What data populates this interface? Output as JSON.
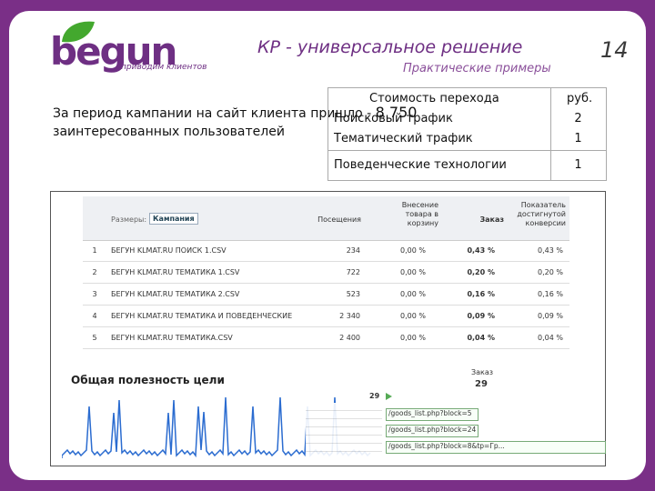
{
  "header": {
    "logo": "begun",
    "tagline": "приводим клиентов",
    "title": "КР - универсальное решение",
    "subtitle": "Практические примеры",
    "page_number": "14"
  },
  "intro": {
    "text": "За период кампании на сайт клиента пришло - ",
    "count": "8 750",
    "text_end": "заинтересованных пользователей"
  },
  "cost_table": {
    "header": [
      "Стоимость перехода",
      "руб."
    ],
    "rows": [
      [
        "Поисковый трафик",
        2
      ],
      [
        "Тематический трафик",
        1
      ],
      [
        "Поведенческие технологии",
        1
      ]
    ]
  },
  "screenshot": {
    "dimension_label": "Размеры:",
    "dimension_value": "Кампания",
    "columns": [
      "Посещения",
      "Внесение товара в корзину",
      "Заказ",
      "Показатель достигнутой конверсии"
    ],
    "rows": [
      [
        "1",
        "БЕГУН KLMAT.RU ПОИСК 1.CSV",
        "234",
        "0,00 %",
        "0,43 %",
        "0,43 %"
      ],
      [
        "2",
        "БЕГУН KLMAT.RU ТЕМАТИКА 1.CSV",
        "722",
        "0,00 %",
        "0,20 %",
        "0,20 %"
      ],
      [
        "3",
        "БЕГУН KLMAT.RU ТЕМАТИКА 2.CSV",
        "523",
        "0,00 %",
        "0,16 %",
        "0,16 %"
      ],
      [
        "4",
        "БЕГУН KLMAT.RU ТЕМАТИКА И ПОВЕДЕНЧЕСКИЕ",
        "2 340",
        "0,00 %",
        "0,09 %",
        "0,09 %"
      ],
      [
        "5",
        "БЕГУН KLMAT.RU ТЕМАТИКА.CSV",
        "2 400",
        "0,00 %",
        "0,04 %",
        "0,04 %"
      ]
    ],
    "chart_title": "Общая полезность цели",
    "goal_label": "Заказ",
    "goal_value": "29",
    "goal_marker": "29",
    "urls": [
      "/goods_list.php?block=5",
      "/goods_list.php?block=24",
      "/goods_list.php?block=8&tp=Гр..."
    ]
  }
}
